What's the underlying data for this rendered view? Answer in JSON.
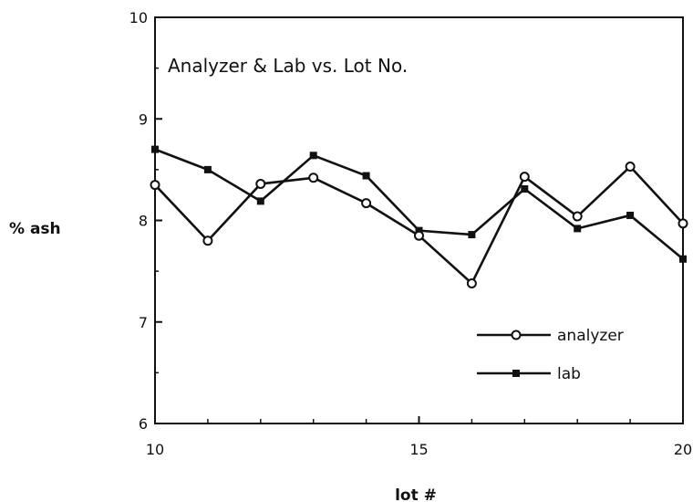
{
  "chart_data": {
    "type": "line",
    "title": "Analyzer & Lab vs. Lot No.",
    "xlabel": "lot #",
    "ylabel": "% ash",
    "xlim": [
      10,
      20
    ],
    "ylim": [
      6,
      10
    ],
    "xticks": [
      10,
      15,
      20
    ],
    "yticks": [
      6,
      7,
      8,
      9,
      10
    ],
    "grid": false,
    "legend_position": "bottom-right",
    "x": [
      10,
      11,
      12,
      13,
      14,
      15,
      16,
      17,
      18,
      19,
      20
    ],
    "series": [
      {
        "name": "analyzer",
        "marker": "open-circle",
        "color": "#111111",
        "values": [
          8.35,
          7.8,
          8.36,
          8.42,
          8.17,
          7.85,
          7.38,
          8.43,
          8.04,
          8.53,
          7.97
        ]
      },
      {
        "name": "lab",
        "marker": "filled-square",
        "color": "#111111",
        "values": [
          8.7,
          8.5,
          8.19,
          8.64,
          8.44,
          7.9,
          7.86,
          8.31,
          7.92,
          8.05,
          7.62
        ]
      }
    ]
  }
}
